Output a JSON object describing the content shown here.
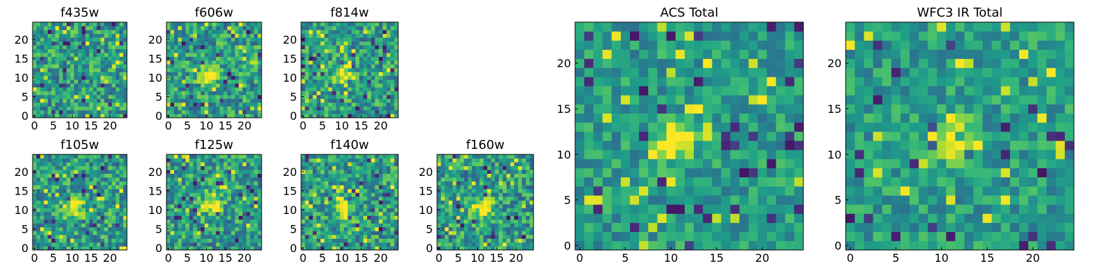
{
  "chart_data": [
    {
      "type": "heatmap",
      "title": "f435w",
      "xlim": [
        0,
        25
      ],
      "ylim": [
        0,
        25
      ],
      "xticks": [
        0,
        5,
        10,
        15,
        20
      ],
      "yticks": [
        0,
        5,
        10,
        15,
        20
      ],
      "colormap": "viridis",
      "source_center": null
    },
    {
      "type": "heatmap",
      "title": "f606w",
      "xlim": [
        0,
        25
      ],
      "ylim": [
        0,
        25
      ],
      "xticks": [
        0,
        5,
        10,
        15,
        20
      ],
      "yticks": [
        0,
        5,
        10,
        15,
        20
      ],
      "colormap": "viridis",
      "source_center": [
        11,
        11
      ]
    },
    {
      "type": "heatmap",
      "title": "f814w",
      "xlim": [
        0,
        25
      ],
      "ylim": [
        0,
        25
      ],
      "xticks": [
        0,
        5,
        10,
        15,
        20
      ],
      "yticks": [
        0,
        5,
        10,
        15,
        20
      ],
      "colormap": "viridis",
      "source_center": [
        11,
        11
      ]
    },
    {
      "type": "heatmap",
      "title": "f105w",
      "xlim": [
        0,
        25
      ],
      "ylim": [
        0,
        25
      ],
      "xticks": [
        0,
        5,
        10,
        15,
        20
      ],
      "yticks": [
        0,
        5,
        10,
        15,
        20
      ],
      "colormap": "viridis",
      "source_center": [
        11,
        11
      ]
    },
    {
      "type": "heatmap",
      "title": "f125w",
      "xlim": [
        0,
        25
      ],
      "ylim": [
        0,
        25
      ],
      "xticks": [
        0,
        5,
        10,
        15,
        20
      ],
      "yticks": [
        0,
        5,
        10,
        15,
        20
      ],
      "colormap": "viridis",
      "source_center": [
        12,
        12
      ]
    },
    {
      "type": "heatmap",
      "title": "f140w",
      "xlim": [
        0,
        25
      ],
      "ylim": [
        0,
        25
      ],
      "xticks": [
        0,
        5,
        10,
        15,
        20
      ],
      "yticks": [
        0,
        5,
        10,
        15,
        20
      ],
      "colormap": "viridis",
      "source_center": [
        11,
        11
      ]
    },
    {
      "type": "heatmap",
      "title": "f160w",
      "xlim": [
        0,
        25
      ],
      "ylim": [
        0,
        25
      ],
      "xticks": [
        0,
        5,
        10,
        15,
        20
      ],
      "yticks": [
        0,
        5,
        10,
        15,
        20
      ],
      "colormap": "viridis",
      "source_center": [
        12,
        11
      ]
    },
    {
      "type": "heatmap",
      "title": "ACS Total",
      "xlim": [
        0,
        25
      ],
      "ylim": [
        0,
        25
      ],
      "xticks": [
        0,
        5,
        10,
        15,
        20
      ],
      "yticks": [
        0,
        5,
        10,
        15,
        20
      ],
      "colormap": "viridis",
      "source_center": [
        11,
        12
      ]
    },
    {
      "type": "heatmap",
      "title": "WFC3 IR Total",
      "xlim": [
        0,
        25
      ],
      "ylim": [
        0,
        25
      ],
      "xticks": [
        0,
        5,
        10,
        15,
        20
      ],
      "yticks": [
        0,
        5,
        10,
        15,
        20
      ],
      "colormap": "viridis",
      "source_center": [
        12,
        12
      ]
    }
  ]
}
